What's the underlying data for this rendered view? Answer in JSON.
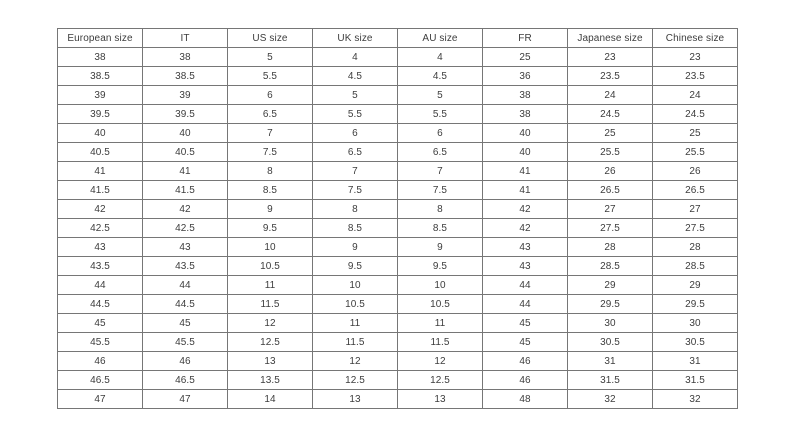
{
  "table": {
    "name": "shoe-size-conversion-table",
    "headers": [
      "European size",
      "IT",
      "US size",
      "UK size",
      "AU size",
      "FR",
      "Japanese size",
      "Chinese size"
    ],
    "rows": [
      [
        "38",
        "38",
        "5",
        "4",
        "4",
        "25",
        "23",
        "23"
      ],
      [
        "38.5",
        "38.5",
        "5.5",
        "4.5",
        "4.5",
        "36",
        "23.5",
        "23.5"
      ],
      [
        "39",
        "39",
        "6",
        "5",
        "5",
        "38",
        "24",
        "24"
      ],
      [
        "39.5",
        "39.5",
        "6.5",
        "5.5",
        "5.5",
        "38",
        "24.5",
        "24.5"
      ],
      [
        "40",
        "40",
        "7",
        "6",
        "6",
        "40",
        "25",
        "25"
      ],
      [
        "40.5",
        "40.5",
        "7.5",
        "6.5",
        "6.5",
        "40",
        "25.5",
        "25.5"
      ],
      [
        "41",
        "41",
        "8",
        "7",
        "7",
        "41",
        "26",
        "26"
      ],
      [
        "41.5",
        "41.5",
        "8.5",
        "7.5",
        "7.5",
        "41",
        "26.5",
        "26.5"
      ],
      [
        "42",
        "42",
        "9",
        "8",
        "8",
        "42",
        "27",
        "27"
      ],
      [
        "42.5",
        "42.5",
        "9.5",
        "8.5",
        "8.5",
        "42",
        "27.5",
        "27.5"
      ],
      [
        "43",
        "43",
        "10",
        "9",
        "9",
        "43",
        "28",
        "28"
      ],
      [
        "43.5",
        "43.5",
        "10.5",
        "9.5",
        "9.5",
        "43",
        "28.5",
        "28.5"
      ],
      [
        "44",
        "44",
        "11",
        "10",
        "10",
        "44",
        "29",
        "29"
      ],
      [
        "44.5",
        "44.5",
        "11.5",
        "10.5",
        "10.5",
        "44",
        "29.5",
        "29.5"
      ],
      [
        "45",
        "45",
        "12",
        "11",
        "11",
        "45",
        "30",
        "30"
      ],
      [
        "45.5",
        "45.5",
        "12.5",
        "11.5",
        "11.5",
        "45",
        "30.5",
        "30.5"
      ],
      [
        "46",
        "46",
        "13",
        "12",
        "12",
        "46",
        "31",
        "31"
      ],
      [
        "46.5",
        "46.5",
        "13.5",
        "12.5",
        "12.5",
        "46",
        "31.5",
        "31.5"
      ],
      [
        "47",
        "47",
        "14",
        "13",
        "13",
        "48",
        "32",
        "32"
      ]
    ],
    "colors": {
      "border": "#767676",
      "text": "#3d3d3d",
      "background": "#ffffff"
    }
  }
}
